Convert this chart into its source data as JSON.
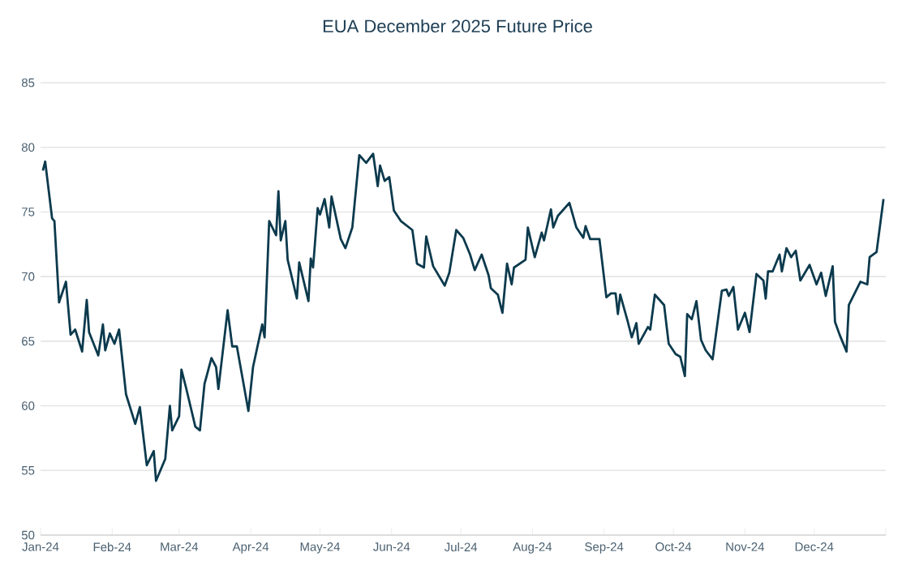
{
  "chart_data": {
    "type": "line",
    "title": "EUA December 2025 Future Price",
    "x": [
      "2024-01-02",
      "2024-01-03",
      "2024-01-06",
      "2024-01-07",
      "2024-01-09",
      "2024-01-12",
      "2024-01-14",
      "2024-01-16",
      "2024-01-19",
      "2024-01-21",
      "2024-01-22",
      "2024-01-26",
      "2024-01-28",
      "2024-01-29",
      "2024-01-31",
      "2024-02-02",
      "2024-02-04",
      "2024-02-07",
      "2024-02-11",
      "2024-02-13",
      "2024-02-16",
      "2024-02-19",
      "2024-02-20",
      "2024-02-24",
      "2024-02-26",
      "2024-02-27",
      "2024-03-01",
      "2024-03-02",
      "2024-03-04",
      "2024-03-08",
      "2024-03-10",
      "2024-03-12",
      "2024-03-15",
      "2024-03-17",
      "2024-03-18",
      "2024-03-22",
      "2024-03-24",
      "2024-03-26",
      "2024-03-31",
      "2024-04-02",
      "2024-04-06",
      "2024-04-07",
      "2024-04-09",
      "2024-04-12",
      "2024-04-13",
      "2024-04-14",
      "2024-04-16",
      "2024-04-17",
      "2024-04-21",
      "2024-04-22",
      "2024-04-26",
      "2024-04-27",
      "2024-04-28",
      "2024-04-30",
      "2024-05-01",
      "2024-05-03",
      "2024-05-05",
      "2024-05-06",
      "2024-05-10",
      "2024-05-12",
      "2024-05-15",
      "2024-05-18",
      "2024-05-21",
      "2024-05-24",
      "2024-05-26",
      "2024-05-27",
      "2024-05-29",
      "2024-05-31",
      "2024-06-02",
      "2024-06-05",
      "2024-06-10",
      "2024-06-12",
      "2024-06-15",
      "2024-06-16",
      "2024-06-19",
      "2024-06-24",
      "2024-06-26",
      "2024-06-29",
      "2024-07-02",
      "2024-07-05",
      "2024-07-07",
      "2024-07-10",
      "2024-07-13",
      "2024-07-14",
      "2024-07-17",
      "2024-07-19",
      "2024-07-21",
      "2024-07-23",
      "2024-07-24",
      "2024-07-29",
      "2024-07-30",
      "2024-08-02",
      "2024-08-05",
      "2024-08-06",
      "2024-08-09",
      "2024-08-10",
      "2024-08-12",
      "2024-08-17",
      "2024-08-20",
      "2024-08-23",
      "2024-08-24",
      "2024-08-26",
      "2024-08-30",
      "2024-09-02",
      "2024-09-04",
      "2024-09-06",
      "2024-09-07",
      "2024-09-08",
      "2024-09-11",
      "2024-09-13",
      "2024-09-15",
      "2024-09-16",
      "2024-09-20",
      "2024-09-21",
      "2024-09-23",
      "2024-09-27",
      "2024-09-29",
      "2024-10-02",
      "2024-10-04",
      "2024-10-06",
      "2024-10-07",
      "2024-10-09",
      "2024-10-11",
      "2024-10-13",
      "2024-10-15",
      "2024-10-18",
      "2024-10-22",
      "2024-10-24",
      "2024-10-25",
      "2024-10-27",
      "2024-10-29",
      "2024-11-01",
      "2024-11-03",
      "2024-11-06",
      "2024-11-09",
      "2024-11-10",
      "2024-11-11",
      "2024-11-13",
      "2024-11-16",
      "2024-11-17",
      "2024-11-19",
      "2024-11-21",
      "2024-11-23",
      "2024-11-25",
      "2024-11-29",
      "2024-12-02",
      "2024-12-04",
      "2024-12-06",
      "2024-12-09",
      "2024-12-10",
      "2024-12-12",
      "2024-12-15",
      "2024-12-16",
      "2024-12-21",
      "2024-12-24",
      "2024-12-25",
      "2024-12-28",
      "2024-12-31"
    ],
    "values": [
      78.2,
      78.9,
      74.5,
      74.3,
      68.0,
      69.6,
      65.5,
      65.9,
      64.2,
      68.2,
      65.7,
      63.9,
      66.3,
      64.3,
      65.6,
      64.8,
      65.9,
      60.9,
      58.6,
      59.9,
      55.4,
      56.5,
      54.2,
      55.9,
      60.0,
      58.1,
      59.2,
      62.8,
      61.4,
      58.4,
      58.1,
      61.7,
      63.7,
      63.0,
      61.3,
      67.4,
      64.6,
      64.6,
      59.6,
      63.0,
      66.3,
      65.3,
      74.3,
      73.2,
      76.6,
      72.8,
      74.3,
      71.3,
      68.3,
      71.1,
      68.1,
      71.4,
      70.7,
      75.3,
      74.8,
      76.0,
      73.8,
      76.2,
      72.9,
      72.2,
      73.8,
      79.4,
      78.8,
      79.5,
      77.0,
      78.6,
      77.4,
      77.7,
      75.1,
      74.3,
      73.6,
      71.0,
      70.7,
      73.1,
      70.8,
      69.3,
      70.3,
      73.6,
      73.0,
      71.7,
      70.5,
      71.7,
      70.1,
      69.1,
      68.6,
      67.2,
      71.0,
      69.4,
      70.7,
      71.3,
      73.8,
      71.5,
      73.4,
      72.8,
      75.2,
      73.8,
      74.7,
      75.7,
      73.8,
      73.0,
      73.9,
      72.9,
      72.9,
      68.4,
      68.7,
      68.7,
      67.1,
      68.6,
      66.7,
      65.3,
      66.4,
      64.8,
      66.1,
      65.9,
      68.6,
      67.8,
      64.8,
      64.0,
      63.8,
      62.3,
      67.1,
      66.7,
      68.1,
      65.1,
      64.3,
      63.6,
      68.9,
      69.0,
      68.5,
      69.2,
      65.9,
      67.2,
      65.7,
      70.2,
      69.7,
      68.3,
      70.4,
      70.4,
      71.7,
      70.4,
      72.2,
      71.5,
      72.0,
      69.7,
      70.9,
      69.4,
      70.3,
      68.5,
      70.8,
      66.5,
      65.5,
      64.2,
      67.8,
      69.6,
      69.4,
      71.5,
      71.9,
      76.0
    ],
    "color": "#0c3a4d",
    "xlim": [
      "2024-01-01",
      "2025-01-01"
    ],
    "xticks": [
      {
        "value": "2024-01-01",
        "label": "Jan-24"
      },
      {
        "value": "2024-02-01",
        "label": "Feb-24"
      },
      {
        "value": "2024-03-01",
        "label": "Mar-24"
      },
      {
        "value": "2024-04-01",
        "label": "Apr-24"
      },
      {
        "value": "2024-05-01",
        "label": "May-24"
      },
      {
        "value": "2024-06-01",
        "label": "Jun-24"
      },
      {
        "value": "2024-07-01",
        "label": "Jul-24"
      },
      {
        "value": "2024-08-01",
        "label": "Aug-24"
      },
      {
        "value": "2024-09-01",
        "label": "Sep-24"
      },
      {
        "value": "2024-10-01",
        "label": "Oct-24"
      },
      {
        "value": "2024-11-01",
        "label": "Nov-24"
      },
      {
        "value": "2024-12-01",
        "label": "Dec-24"
      },
      {
        "value": "2025-01-01",
        "label": null
      }
    ],
    "ylim": [
      50,
      85
    ],
    "yticks": [
      50,
      55,
      60,
      65,
      70,
      75,
      80,
      85
    ],
    "grid": "y",
    "line_style": "solid",
    "marker": "none"
  }
}
